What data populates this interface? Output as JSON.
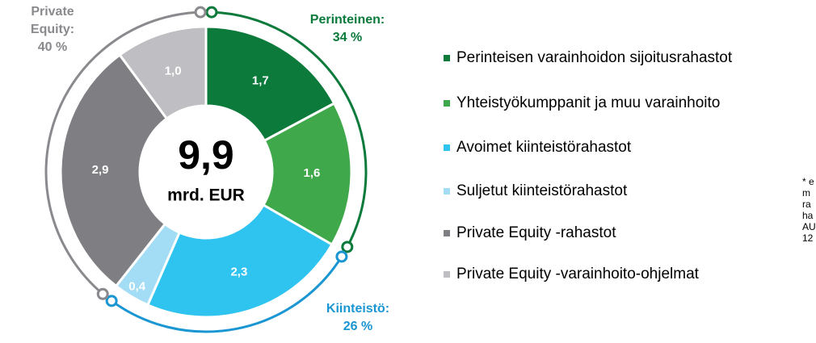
{
  "chart_data": {
    "type": "donut",
    "center_value": 9.9,
    "center_value_label": "9,9",
    "center_unit": "mrd. EUR",
    "categories": [
      "Perinteisen varainhoidon sijoitusrahastot",
      "Yhteistyökumppanit ja muu varainhoito",
      "Avoimet kiinteistörahastot",
      "Suljetut kiinteistörahastot",
      "Private Equity -rahastot",
      "Private Equity -varainhoito-ohjelmat"
    ],
    "values": [
      1.7,
      1.6,
      2.3,
      0.4,
      2.9,
      1.0
    ],
    "value_labels": [
      "1,7",
      "1,6",
      "2,3",
      "0,4",
      "2,9",
      "1,0"
    ],
    "colors": [
      "#0b7a3b",
      "#3fa84b",
      "#2fc3f0",
      "#a3dcf5",
      "#7f7f83",
      "#bfbfc3"
    ],
    "groups": [
      {
        "name": [
          "Perinteinen:"
        ],
        "value": 34,
        "value_label": "34 %",
        "color": "#0b7a3b"
      },
      {
        "name": [
          "Kiinteistö:"
        ],
        "value": 26,
        "value_label": "26 %",
        "color": "#1a96d2"
      },
      {
        "name": [
          "Private",
          "Equity:"
        ],
        "value": 40,
        "value_label": "40 %",
        "color": "#8a8a8e"
      }
    ],
    "footnote": [
      "* e",
      "m",
      "ra",
      "ha",
      "AU",
      "12"
    ]
  }
}
